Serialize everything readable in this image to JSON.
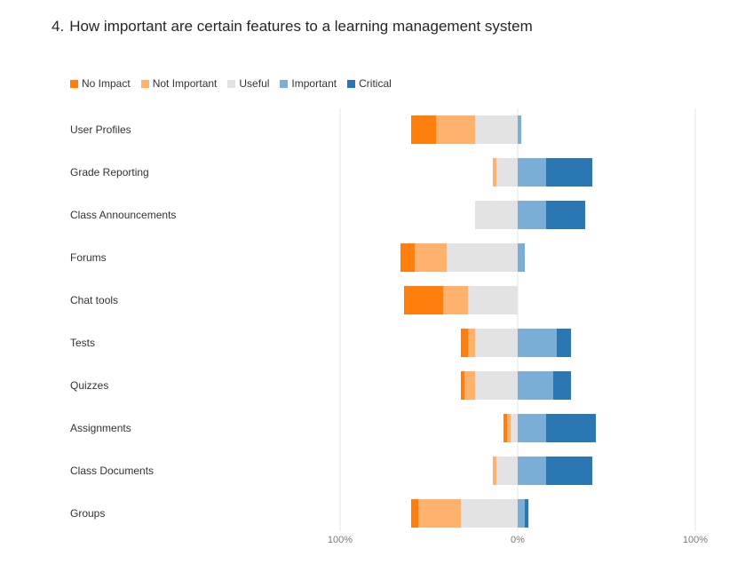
{
  "question": {
    "number": "4.",
    "text": "How important are certain features to a learning management system"
  },
  "colors": {
    "no_impact": "#ff7f0e",
    "not_important": "#ffb26e",
    "useful": "#e3e3e3",
    "important": "#7aaed6",
    "critical": "#2a77b4",
    "gridline": "#e6e6e6"
  },
  "chart_data": {
    "type": "bar",
    "orientation": "horizontal-diverging",
    "xlim": [
      -100,
      100
    ],
    "x_tick_labels": [
      "100%",
      "0%",
      "100%"
    ],
    "legend_position": "top-left",
    "grid": true,
    "series": [
      {
        "name": "No Impact",
        "color_key": "no_impact"
      },
      {
        "name": "Not Important",
        "color_key": "not_important"
      },
      {
        "name": "Useful",
        "color_key": "useful"
      },
      {
        "name": "Important",
        "color_key": "important"
      },
      {
        "name": "Critical",
        "color_key": "critical"
      }
    ],
    "categories": [
      "User Profiles",
      "Grade Reporting",
      "Class Announcements",
      "Forums",
      "Chat tools",
      "Tests",
      "Quizzes",
      "Assignments",
      "Class Documents",
      "Groups"
    ],
    "values": [
      [
        14,
        22,
        24,
        2,
        0
      ],
      [
        0,
        2,
        12,
        16,
        26
      ],
      [
        0,
        0,
        24,
        16,
        22
      ],
      [
        8,
        18,
        40,
        4,
        0
      ],
      [
        22,
        14,
        28,
        0,
        0
      ],
      [
        4,
        4,
        24,
        22,
        8
      ],
      [
        2,
        6,
        24,
        20,
        10
      ],
      [
        2,
        2,
        4,
        16,
        28
      ],
      [
        0,
        2,
        12,
        16,
        26
      ],
      [
        4,
        24,
        32,
        4,
        2
      ]
    ]
  }
}
